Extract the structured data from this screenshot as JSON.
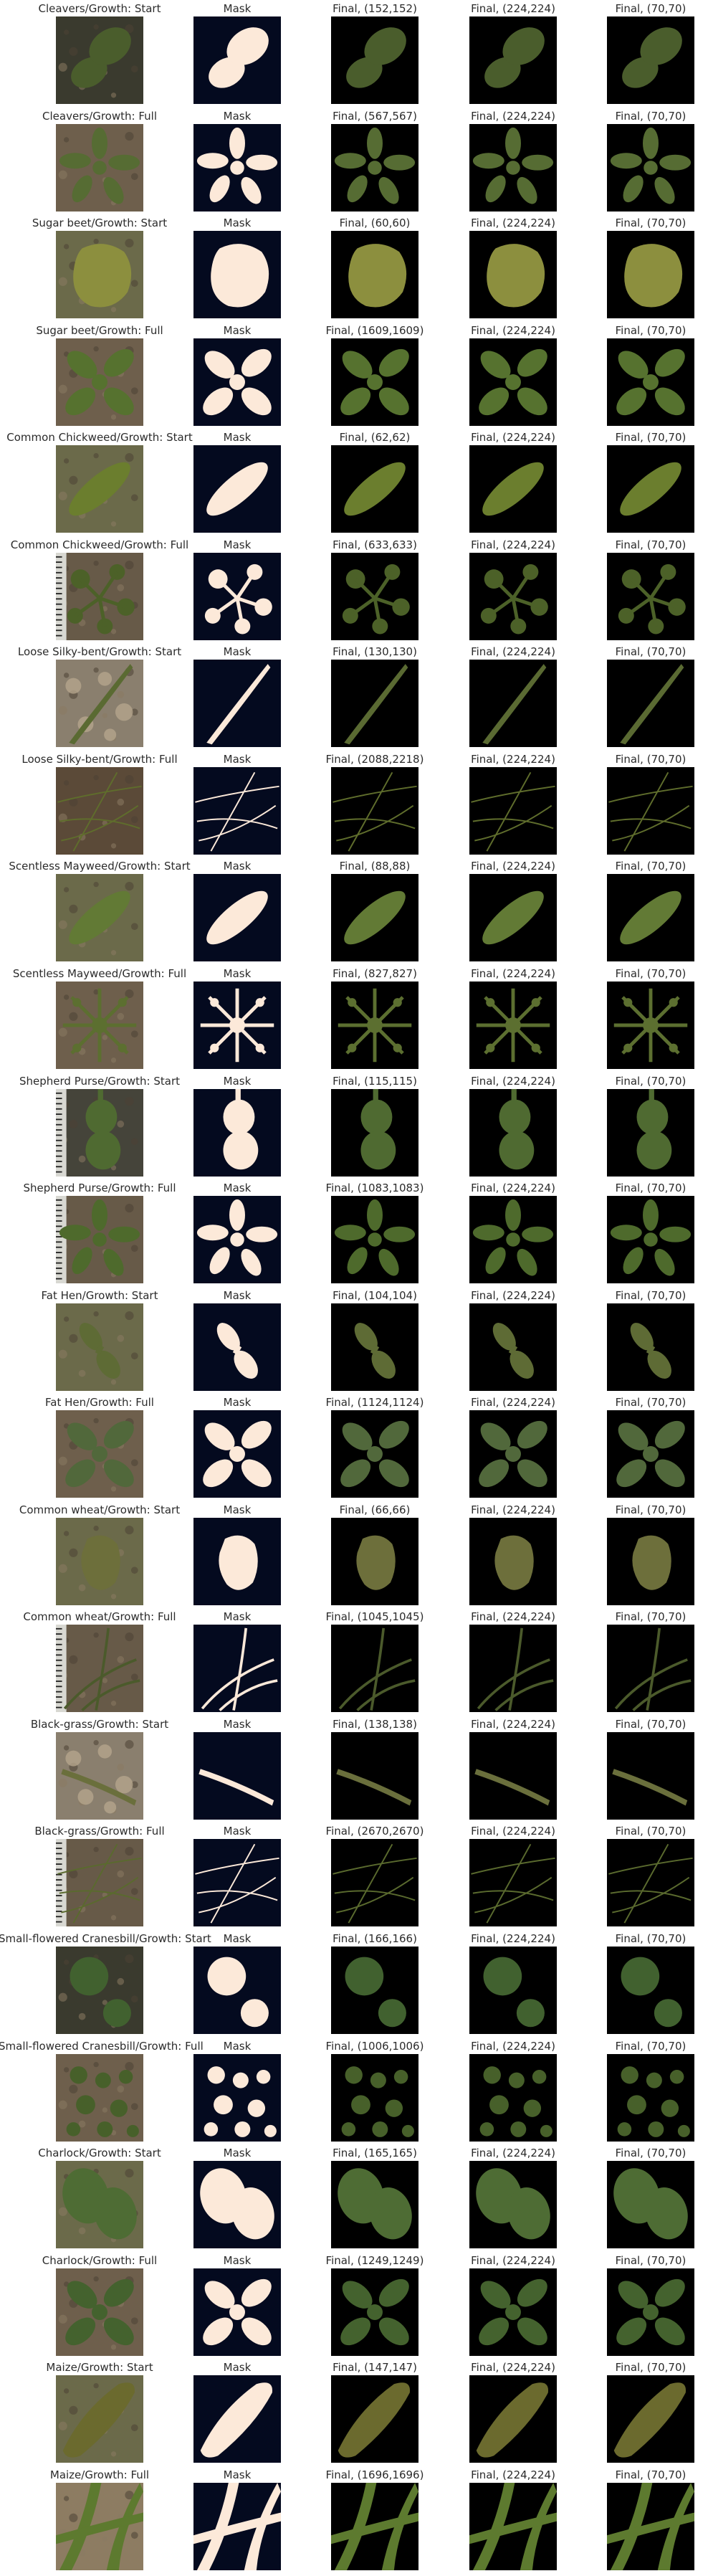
{
  "figure": {
    "column_titles": [
      "Mask",
      "Final, (224,224)",
      "Final, (70,70)"
    ],
    "rows": [
      {
        "species": "Cleavers",
        "stage": "Start",
        "label": "Cleavers/Growth: Start",
        "final_size_label": "Final, (152,152)",
        "shape": "leaf-pair",
        "sprout": "dark",
        "plant_color": "#4a5d2c"
      },
      {
        "species": "Cleavers",
        "stage": "Full",
        "label": "Cleavers/Growth: Full",
        "final_size_label": "Final, (567,567)",
        "shape": "whorl",
        "sprout": "soil",
        "plant_color": "#566c33"
      },
      {
        "species": "Sugar beet",
        "stage": "Start",
        "label": "Sugar beet/Growth: Start",
        "final_size_label": "Final, (60,60)",
        "shape": "blob",
        "sprout": "blur",
        "plant_color": "#8c8f3e"
      },
      {
        "species": "Sugar beet",
        "stage": "Full",
        "label": "Sugar beet/Growth: Full",
        "final_size_label": "Final, (1609,1609)",
        "shape": "rosette",
        "sprout": "soil",
        "plant_color": "#56722f"
      },
      {
        "species": "Common Chickweed",
        "stage": "Start",
        "label": "Common Chickweed/Growth: Start",
        "final_size_label": "Final, (62,62)",
        "shape": "diagonal-blob",
        "sprout": "blur",
        "plant_color": "#6b7e2e"
      },
      {
        "species": "Common Chickweed",
        "stage": "Full",
        "label": "Common Chickweed/Growth: Full",
        "final_size_label": "Final, (633,633)",
        "shape": "sprawl",
        "sprout": "soil-ruler",
        "plant_color": "#4c6128"
      },
      {
        "species": "Loose Silky-bent",
        "stage": "Start",
        "label": "Loose Silky-bent/Growth: Start",
        "final_size_label": "Final, (130,130)",
        "shape": "blade",
        "sprout": "pebbles",
        "plant_color": "#5a6a32"
      },
      {
        "species": "Loose Silky-bent",
        "stage": "Full",
        "label": "Loose Silky-bent/Growth: Full",
        "final_size_label": "Final, (2088,2218)",
        "shape": "threads",
        "sprout": "soil-dark",
        "plant_color": "#5f6d2c"
      },
      {
        "species": "Scentless Mayweed",
        "stage": "Start",
        "label": "Scentless Mayweed/Growth: Start",
        "final_size_label": "Final, (88,88)",
        "shape": "diagonal-blob",
        "sprout": "blur",
        "plant_color": "#627a35"
      },
      {
        "species": "Scentless Mayweed",
        "stage": "Full",
        "label": "Scentless Mayweed/Growth: Full",
        "final_size_label": "Final, (827,827)",
        "shape": "ferny",
        "sprout": "soil",
        "plant_color": "#5c6f30"
      },
      {
        "species": "Shepherd Purse",
        "stage": "Start",
        "label": "Shepherd Purse/Growth: Start",
        "final_size_label": "Final, (115,115)",
        "shape": "stacked-pair",
        "sprout": "dark-ruler",
        "plant_color": "#4f6a31"
      },
      {
        "species": "Shepherd Purse",
        "stage": "Full",
        "label": "Shepherd Purse/Growth: Full",
        "final_size_label": "Final, (1083,1083)",
        "shape": "whorl",
        "sprout": "soil-ruler",
        "plant_color": "#4e6a2c"
      },
      {
        "species": "Fat Hen",
        "stage": "Start",
        "label": "Fat Hen/Growth: Start",
        "final_size_label": "Final, (104,104)",
        "shape": "diagonal-pair",
        "sprout": "blur",
        "plant_color": "#5e6b35"
      },
      {
        "species": "Fat Hen",
        "stage": "Full",
        "label": "Fat Hen/Growth: Full",
        "final_size_label": "Final, (1124,1124)",
        "shape": "rosette",
        "sprout": "soil",
        "plant_color": "#51683b"
      },
      {
        "species": "Common wheat",
        "stage": "Start",
        "label": "Common wheat/Growth: Start",
        "final_size_label": "Final, (66,66)",
        "shape": "blob-small",
        "sprout": "blur",
        "plant_color": "#6d6f3b"
      },
      {
        "species": "Common wheat",
        "stage": "Full",
        "label": "Common wheat/Growth: Full",
        "final_size_label": "Final, (1045,1045)",
        "shape": "blades",
        "sprout": "soil-ruler",
        "plant_color": "#4b5a2b"
      },
      {
        "species": "Black-grass",
        "stage": "Start",
        "label": "Black-grass/Growth: Start",
        "final_size_label": "Final, (138,138)",
        "shape": "blade-flat",
        "sprout": "pebbles",
        "plant_color": "#6a6f3c"
      },
      {
        "species": "Black-grass",
        "stage": "Full",
        "label": "Black-grass/Growth: Full",
        "final_size_label": "Final, (2670,2670)",
        "shape": "threads",
        "sprout": "soil-ruler",
        "plant_color": "#5a6a2e"
      },
      {
        "species": "Small-flowered Cranesbill",
        "stage": "Start",
        "label": "Small-flowered Cranesbill/Growth: Start",
        "final_size_label": "Final, (166,166)",
        "shape": "round-pair",
        "sprout": "dark",
        "plant_color": "#41612f"
      },
      {
        "species": "Small-flowered Cranesbill",
        "stage": "Full",
        "label": "Small-flowered Cranesbill/Growth: Full",
        "final_size_label": "Final, (1006,1006)",
        "shape": "clusters",
        "sprout": "soil",
        "plant_color": "#47602a"
      },
      {
        "species": "Charlock",
        "stage": "Start",
        "label": "Charlock/Growth: Start",
        "final_size_label": "Final, (165,165)",
        "shape": "bilobe",
        "sprout": "blur",
        "plant_color": "#4e6c34"
      },
      {
        "species": "Charlock",
        "stage": "Full",
        "label": "Charlock/Growth: Full",
        "final_size_label": "Final, (1249,1249)",
        "shape": "rosette",
        "sprout": "soil",
        "plant_color": "#44622e"
      },
      {
        "species": "Maize",
        "stage": "Start",
        "label": "Maize/Growth: Start",
        "final_size_label": "Final, (147,147)",
        "shape": "wide-blade",
        "sprout": "blur",
        "plant_color": "#6b6a2e"
      },
      {
        "species": "Maize",
        "stage": "Full",
        "label": "Maize/Growth: Full",
        "final_size_label": "Final, (1696,1696)",
        "shape": "crossing-blades",
        "sprout": "soil-light",
        "plant_color": "#5d7a2f"
      }
    ]
  }
}
